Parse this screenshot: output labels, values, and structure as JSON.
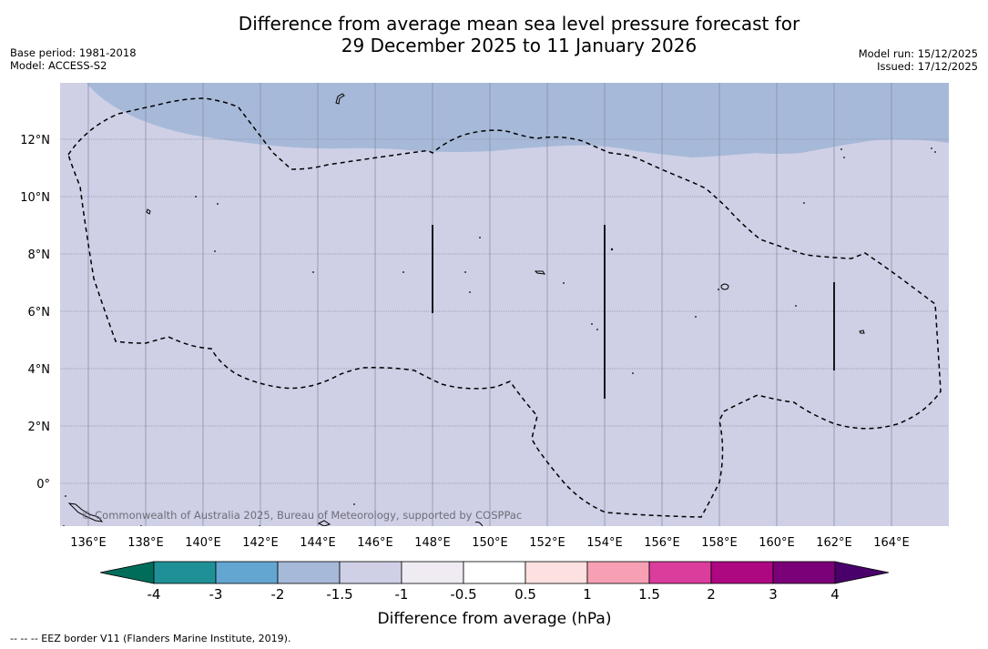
{
  "title": {
    "line1": "Difference from average mean sea level pressure forecast for",
    "line2": "29 December 2025 to 11 January 2026"
  },
  "meta": {
    "base_period": "Base period: 1981-2018",
    "model": "Model: ACCESS-S2",
    "model_run": "Model run: 15/12/2025",
    "issued": "Issued: 17/12/2025"
  },
  "copyright": "© Commonwealth of Australia 2025, Bureau of Meteorology, supported by COSPPac",
  "lon_labels": [
    "136°E",
    "138°E",
    "140°E",
    "142°E",
    "144°E",
    "146°E",
    "148°E",
    "150°E",
    "152°E",
    "154°E",
    "156°E",
    "158°E",
    "160°E",
    "162°E",
    "164°E"
  ],
  "lat_labels": [
    "12°N",
    "10°N",
    "8°N",
    "6°N",
    "4°N",
    "2°N",
    "0°"
  ],
  "colorbar": {
    "title": "Difference from average (hPa)",
    "labels": [
      "-4",
      "-3",
      "-2",
      "-1.5",
      "-1",
      "-0.5",
      "0.5",
      "1",
      "1.5",
      "2",
      "3",
      "4"
    ],
    "colors": [
      "#1f9196",
      "#63a6d1",
      "#a6b9d8",
      "#cfd0e6",
      "#f0ebf2",
      "#ffffff",
      "#fde0e0",
      "#f7a0b4",
      "#db3d9c",
      "#ad0782",
      "#7a0177"
    ],
    "under_color": "#006d5b",
    "over_color": "#49006a"
  },
  "map_colors": {
    "background": "#cfd0e6",
    "anomaly_band": "#a6b9d8"
  },
  "footnote": "--  --  -- EEZ border V11 (Flanders Marine Institute, 2019)."
}
